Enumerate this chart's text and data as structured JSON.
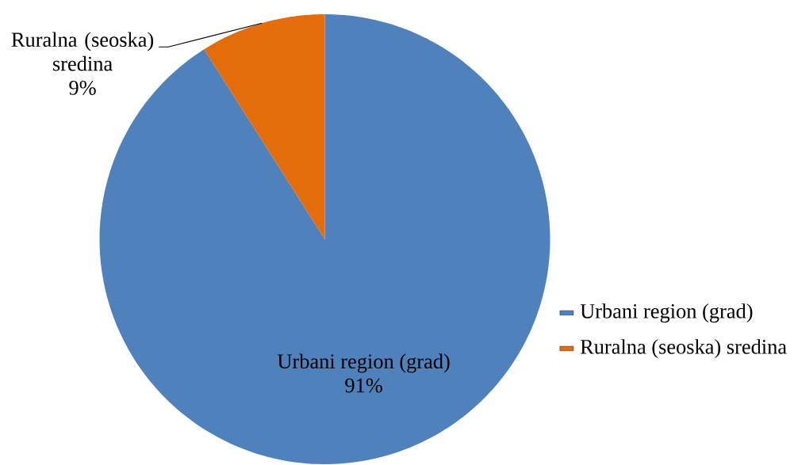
{
  "chart_data": {
    "type": "pie",
    "categories": [
      "Urbani region (grad)",
      "Ruralna (seoska) sredina"
    ],
    "values": [
      91,
      9
    ],
    "colors": [
      "#4f81bd",
      "#e46c0a"
    ],
    "value_labels": [
      "91%",
      "9%"
    ],
    "legend": "right"
  }
}
